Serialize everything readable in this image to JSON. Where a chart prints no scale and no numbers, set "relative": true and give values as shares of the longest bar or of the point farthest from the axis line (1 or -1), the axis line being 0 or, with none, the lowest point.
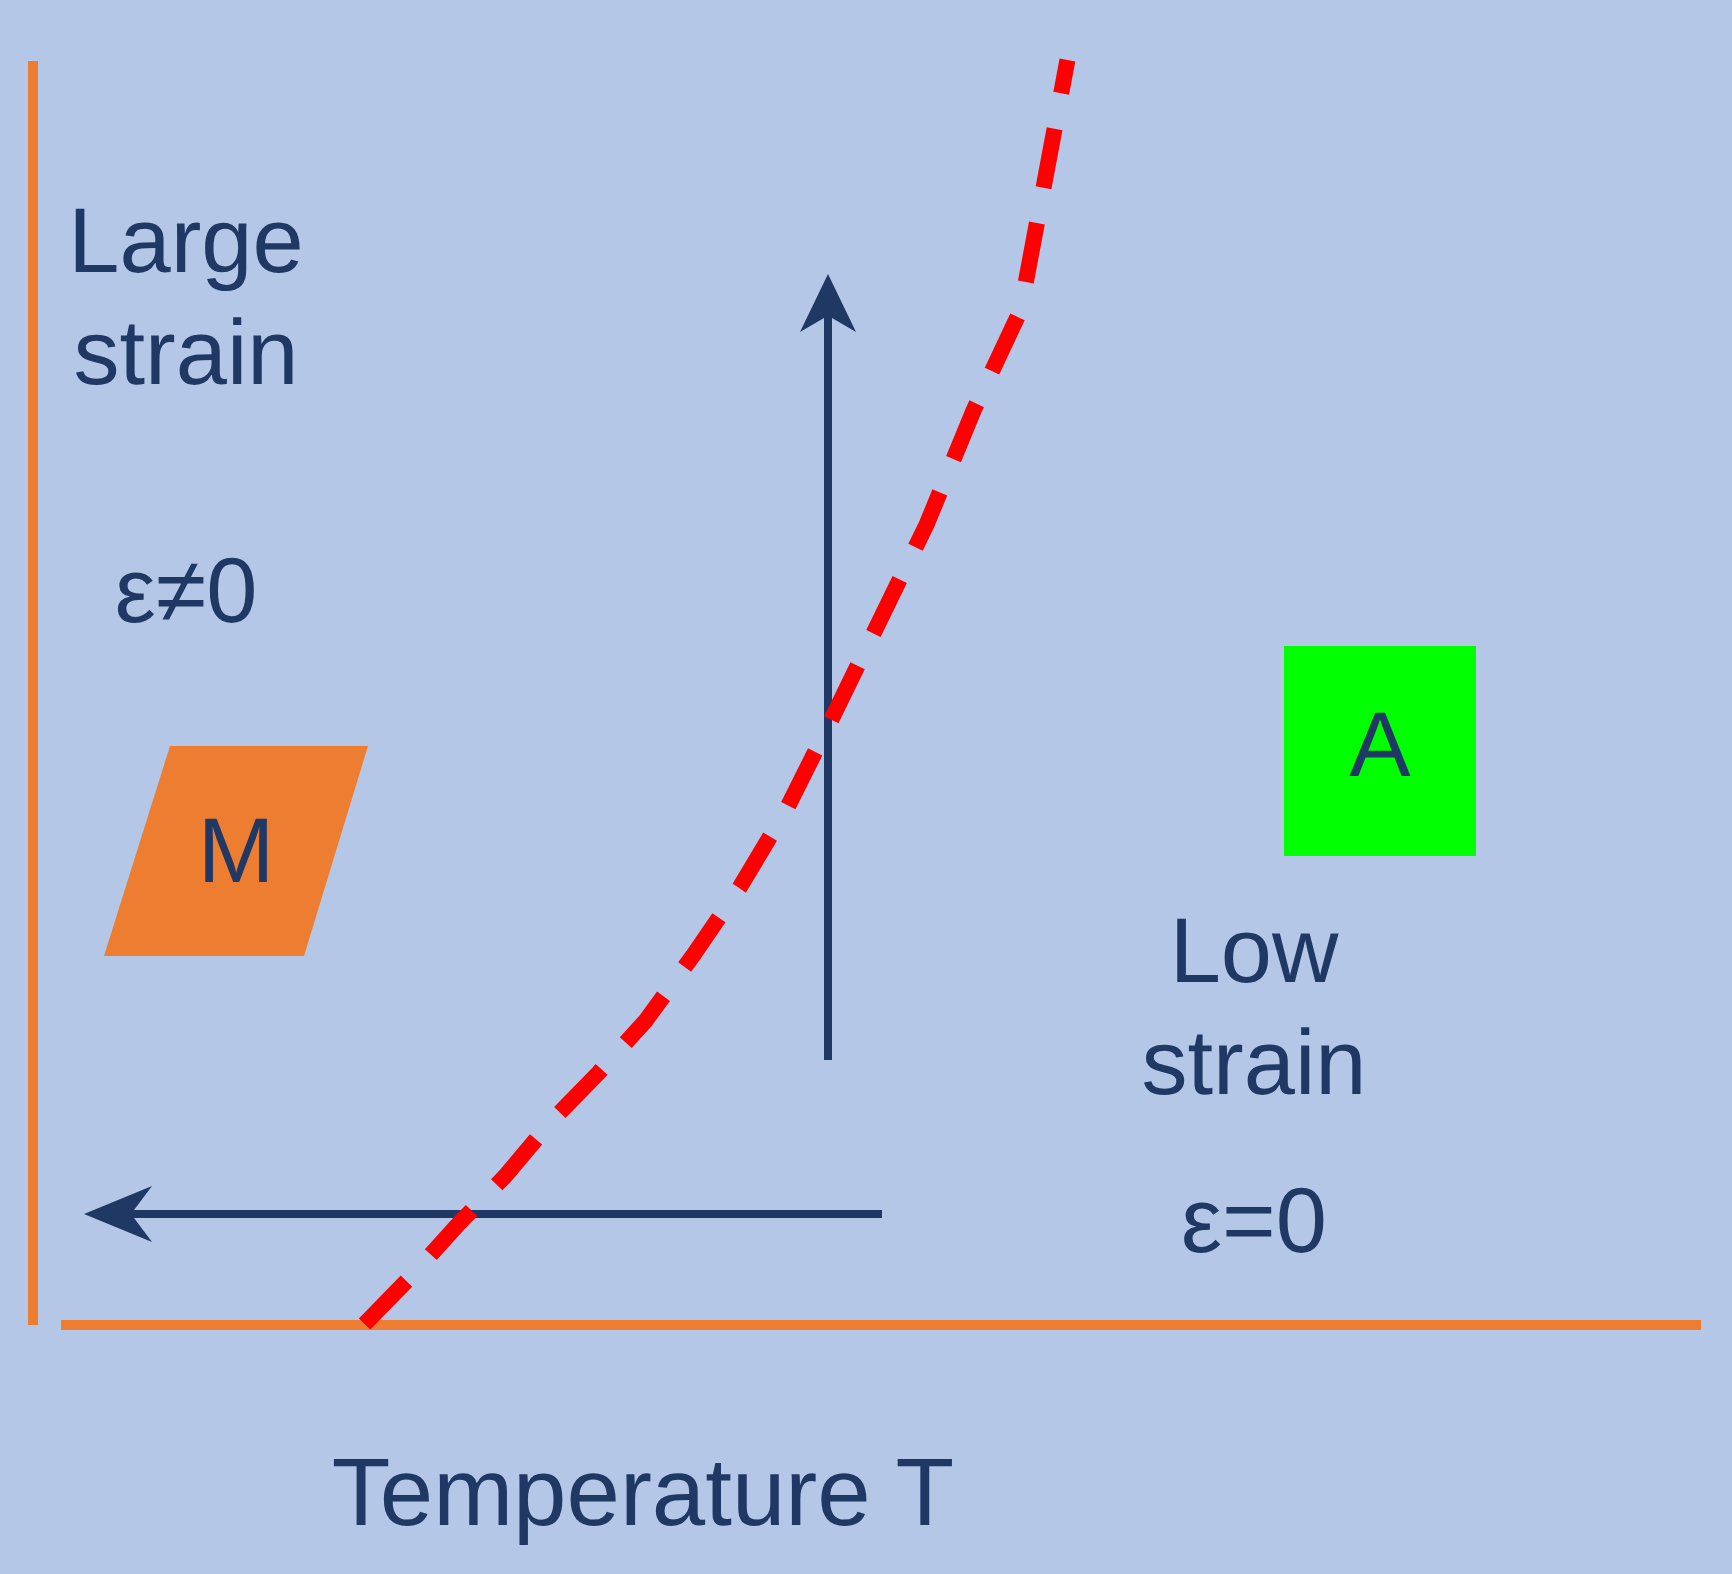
{
  "chart_data": {
    "type": "line",
    "relative": true,
    "xlabel": "Temperature T",
    "categories": [
      null,
      null,
      null,
      null,
      null,
      null,
      null,
      null,
      null,
      null,
      null,
      null,
      null,
      null,
      null,
      null,
      null,
      null,
      null,
      null,
      null,
      null,
      null,
      null,
      null,
      null,
      null,
      null,
      null,
      null,
      null,
      null,
      null,
      null,
      null
    ],
    "series": [
      {
        "color": "#ff0000",
        "line_style": "dashed",
        "values": [
          null,
          null,
          null,
          null,
          null,
          null,
          0,
          0.038,
          0.079,
          0.117,
          0.161,
          0.199,
          0.24,
          0.291,
          0.345,
          0.407,
          0.481,
          0.557,
          0.633,
          0.723,
          0.802,
          1,
          null,
          null,
          null,
          null,
          null,
          null,
          null,
          null,
          null,
          null,
          null,
          null,
          null
        ]
      }
    ],
    "annotations": [
      "Large strain",
      "ε≠0",
      "M",
      "A",
      "Low strain",
      "ε=0"
    ],
    "marker": "none"
  }
}
